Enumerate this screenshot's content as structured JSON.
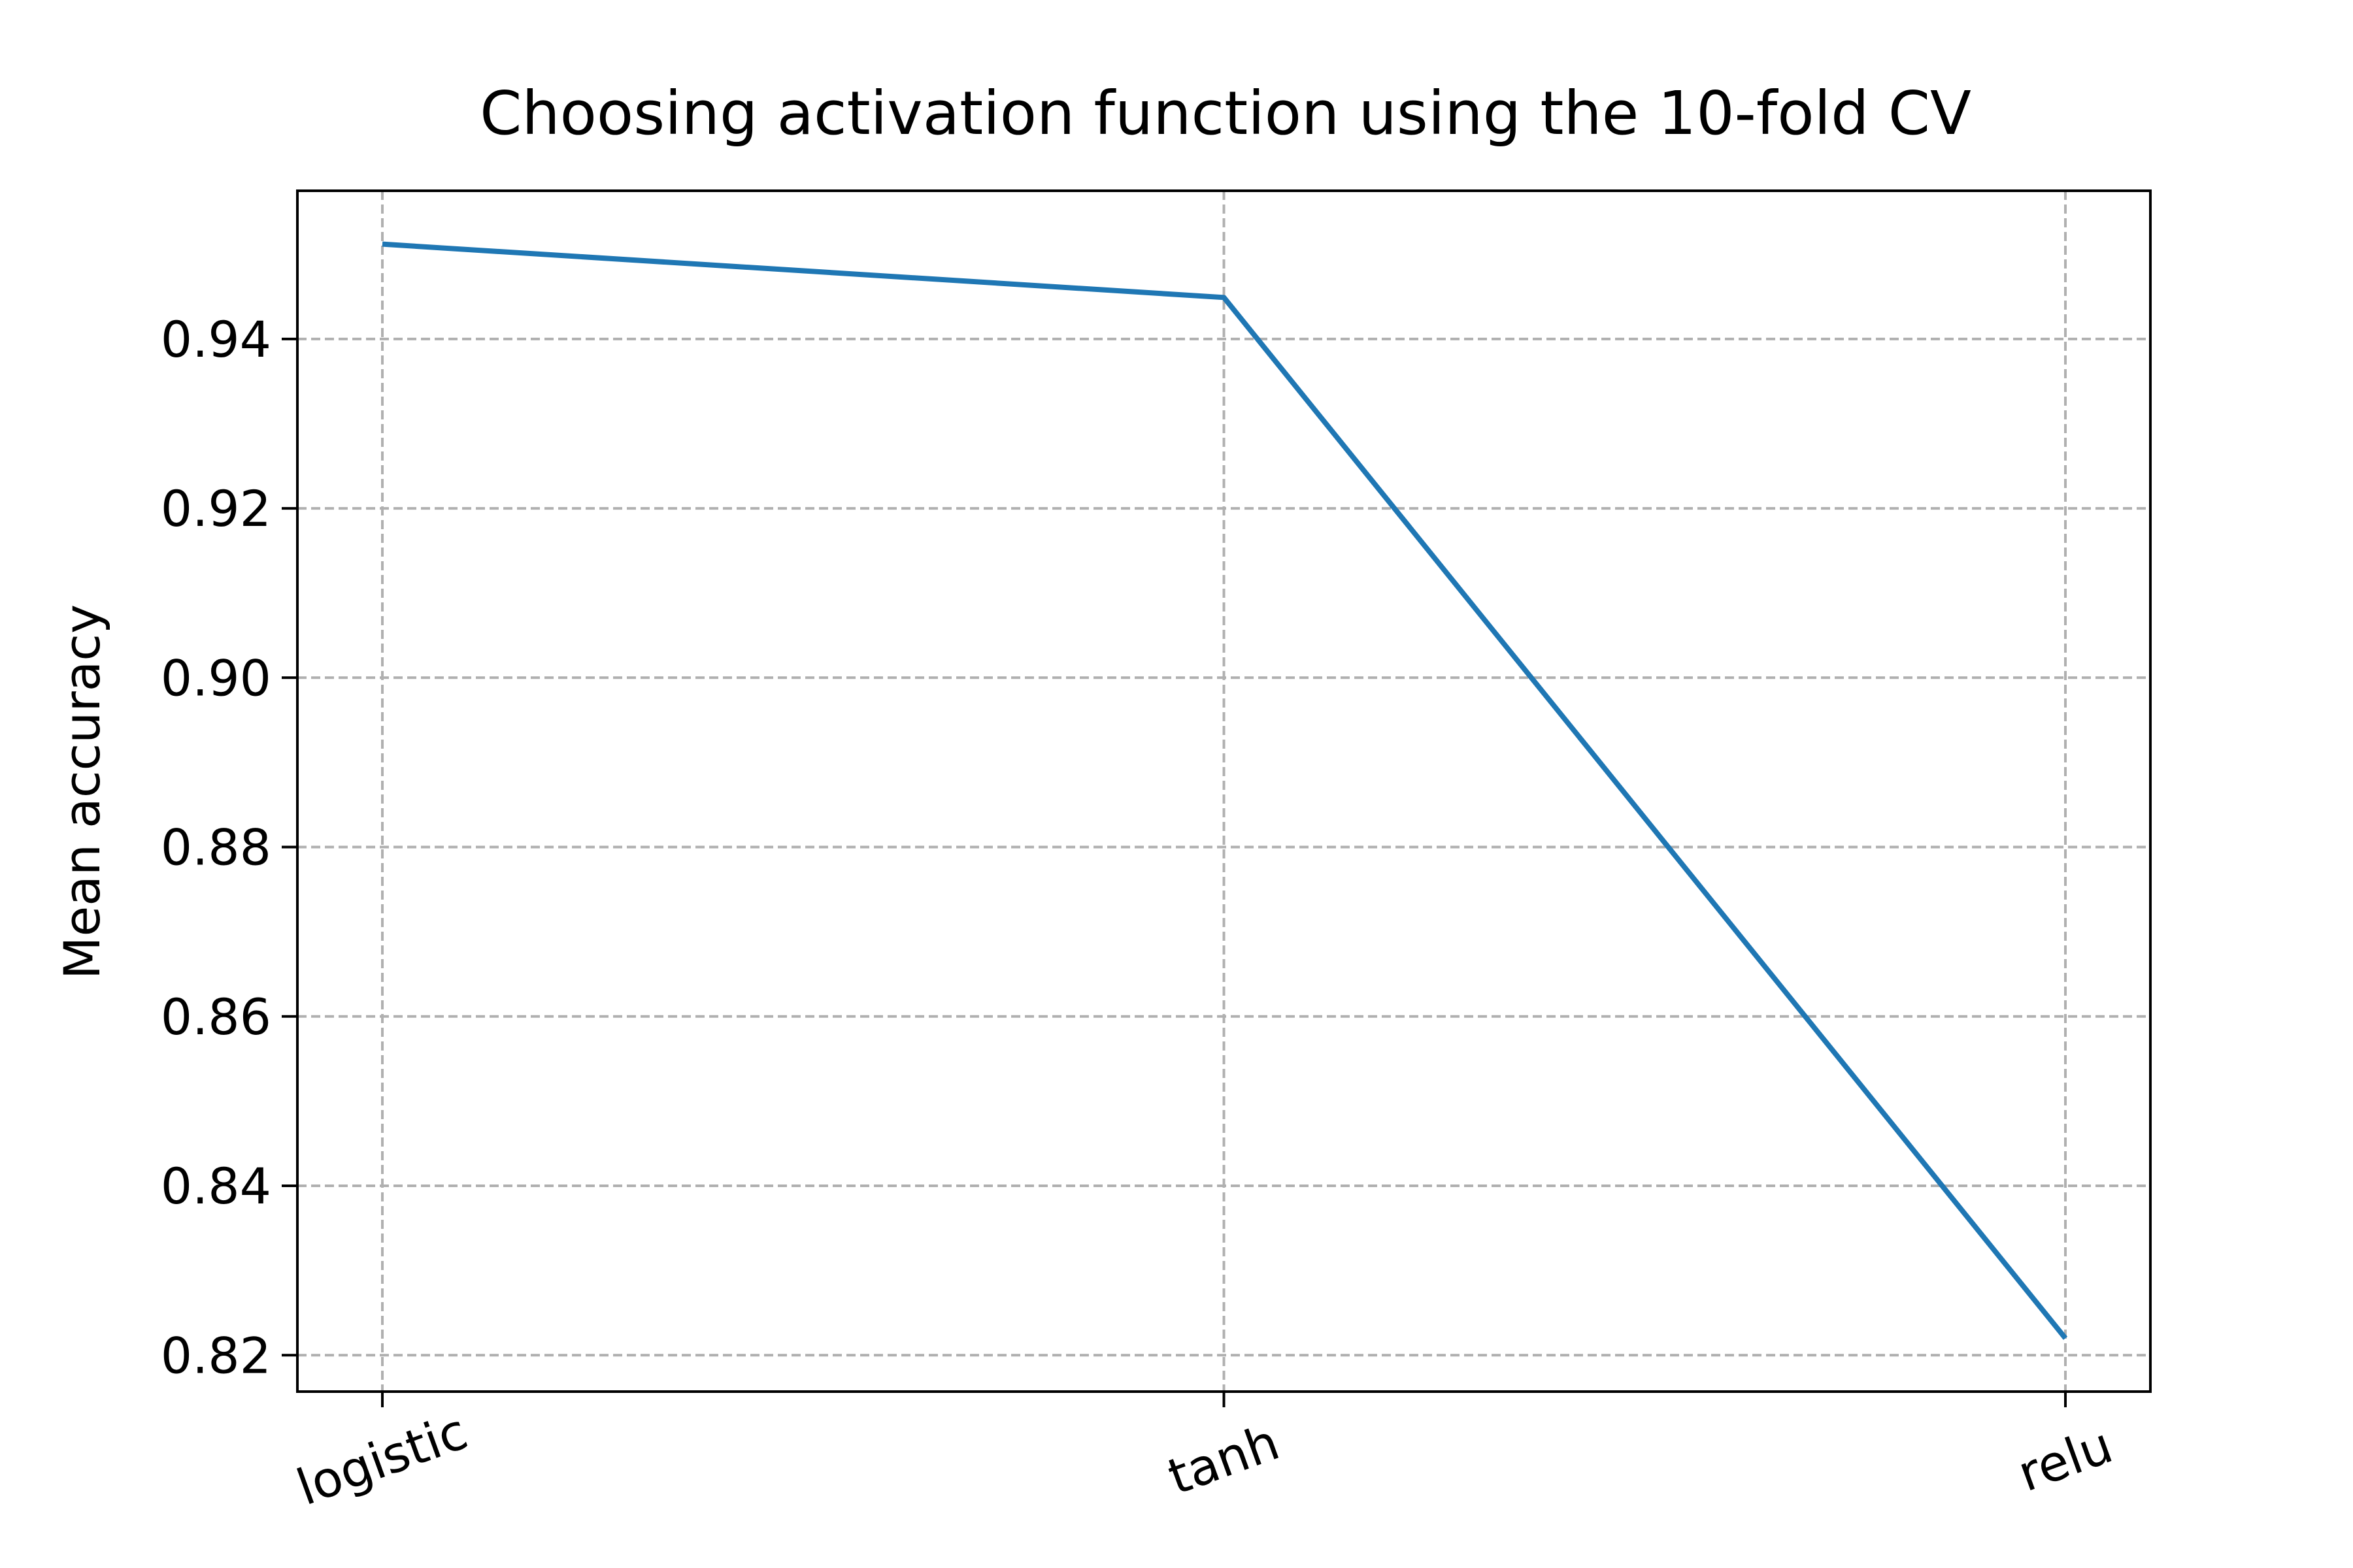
{
  "chart_data": {
    "type": "line",
    "title": "Choosing activation function using the 10-fold CV",
    "xlabel": "",
    "ylabel": "Mean accuracy",
    "categories": [
      "logistic",
      "tanh",
      "relu"
    ],
    "series": [
      {
        "name": "Mean accuracy",
        "values": [
          0.9512,
          0.9449,
          0.822
        ],
        "color": "#1f77b4"
      }
    ],
    "ylim": [
      0.8157,
      0.9575
    ],
    "yticks": [
      0.82,
      0.84,
      0.86,
      0.88,
      0.9,
      0.92,
      0.94
    ],
    "ytick_labels": [
      "0.82",
      "0.84",
      "0.86",
      "0.88",
      "0.90",
      "0.92",
      "0.94"
    ],
    "grid": true,
    "legend": "none"
  }
}
